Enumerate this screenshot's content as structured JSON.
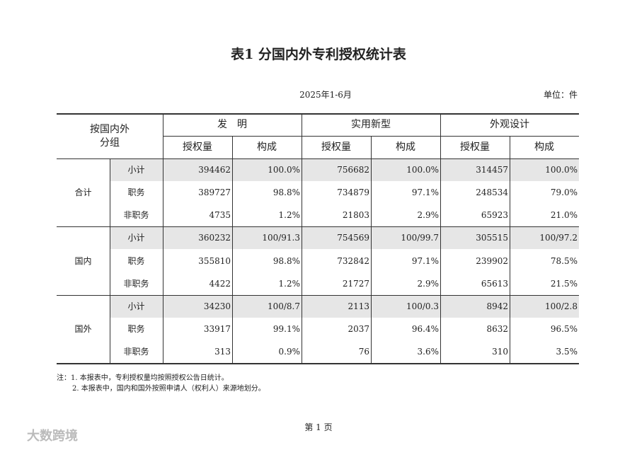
{
  "title": "表1  分国内外专利授权统计表",
  "date": "2025年1-6月",
  "unit": "单位：件",
  "table": {
    "corner": [
      "按国内外",
      "分组"
    ],
    "groups": [
      "发　明",
      "实用新型",
      "外观设计"
    ],
    "subheaders": [
      "授权量",
      "构成"
    ],
    "sections": [
      {
        "name": "合计",
        "rows": [
          {
            "label": "小计",
            "cells": [
              394462,
              "100.0%",
              756682,
              "100.0%",
              314457,
              "100.0%"
            ]
          },
          {
            "label": "职务",
            "cells": [
              389727,
              "98.8%",
              734879,
              "97.1%",
              248534,
              "79.0%"
            ]
          },
          {
            "label": "非职务",
            "cells": [
              4735,
              "1.2%",
              21803,
              "2.9%",
              65923,
              "21.0%"
            ]
          }
        ]
      },
      {
        "name": "国内",
        "rows": [
          {
            "label": "小计",
            "cells": [
              360232,
              "100/91.3",
              754569,
              "100/99.7",
              305515,
              "100/97.2"
            ]
          },
          {
            "label": "职务",
            "cells": [
              355810,
              "98.8%",
              732842,
              "97.1%",
              239902,
              "78.5%"
            ]
          },
          {
            "label": "非职务",
            "cells": [
              4422,
              "1.2%",
              21727,
              "2.9%",
              65613,
              "21.5%"
            ]
          }
        ]
      },
      {
        "name": "国外",
        "rows": [
          {
            "label": "小计",
            "cells": [
              34230,
              "100/8.7",
              2113,
              "100/0.3",
              8942,
              "100/2.8"
            ]
          },
          {
            "label": "职务",
            "cells": [
              33917,
              "99.1%",
              2037,
              "96.4%",
              8632,
              "96.5%"
            ]
          },
          {
            "label": "非职务",
            "cells": [
              313,
              "0.9%",
              76,
              "3.6%",
              310,
              "3.5%"
            ]
          }
        ]
      }
    ]
  },
  "notes": [
    "注：1. 本报表中，专利授权量均按照授权公告日统计。",
    "2. 本报表中，国内和国外按照申请人（权利人）来源地划分。"
  ],
  "footer": "第 1 页",
  "watermark": "大数跨境"
}
